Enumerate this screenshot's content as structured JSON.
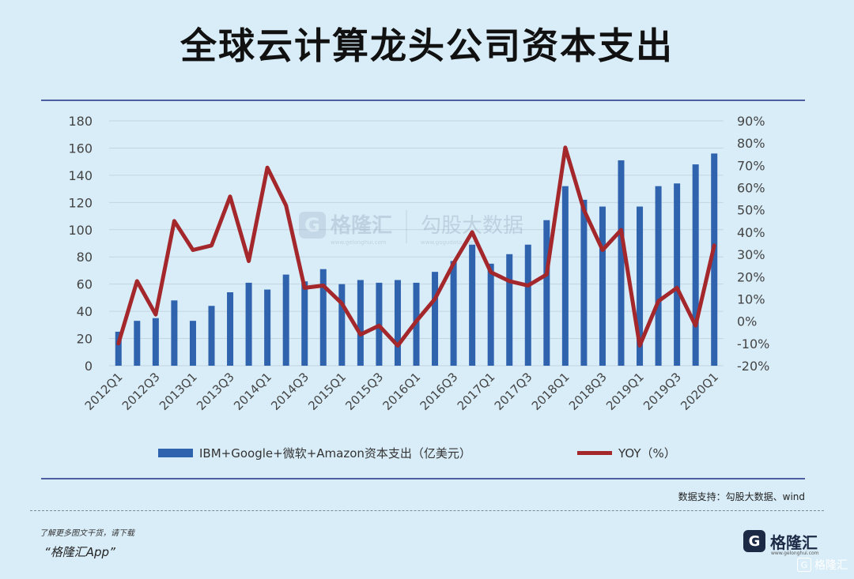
{
  "title": "全球云计算龙头公司资本支出",
  "source": "数据支持：勾股大数据、wind",
  "footer": {
    "small_text": "了解更多图文干货，请下载",
    "app_text": "“格隆汇App”",
    "brand_name": "格隆汇",
    "brand_logo": "G",
    "brand_sub": "www.gelonghui.com",
    "watermark": "格隆汇"
  },
  "chart_data": {
    "type": "bar",
    "title": "全球云计算龙头公司资本支出",
    "categories": [
      "2012Q1",
      "2012Q2",
      "2012Q3",
      "2012Q4",
      "2013Q1",
      "2013Q2",
      "2013Q3",
      "2013Q4",
      "2014Q1",
      "2014Q2",
      "2014Q3",
      "2014Q4",
      "2015Q1",
      "2015Q2",
      "2015Q3",
      "2015Q4",
      "2016Q1",
      "2016Q2",
      "2016Q3",
      "2016Q4",
      "2017Q1",
      "2017Q2",
      "2017Q3",
      "2017Q4",
      "2018Q1",
      "2018Q2",
      "2018Q3",
      "2018Q4",
      "2019Q1",
      "2019Q2",
      "2019Q3",
      "2019Q4",
      "2020Q1"
    ],
    "tick_labels": [
      "2012Q1",
      "2012Q3",
      "2013Q1",
      "2013Q3",
      "2014Q1",
      "2014Q3",
      "2015Q1",
      "2015Q3",
      "2016Q1",
      "2016Q3",
      "2017Q1",
      "2017Q3",
      "2018Q1",
      "2018Q3",
      "2019Q1",
      "2019Q3",
      "2020Q1"
    ],
    "series": [
      {
        "name": "IBM+Google+微软+Amazon资本支出（亿美元）",
        "type": "bar",
        "axis": "left",
        "values": [
          25,
          33,
          35,
          48,
          33,
          44,
          54,
          61,
          56,
          67,
          62,
          71,
          60,
          63,
          61,
          63,
          61,
          69,
          77,
          89,
          75,
          82,
          89,
          107,
          132,
          122,
          117,
          151,
          117,
          132,
          134,
          148,
          156
        ]
      },
      {
        "name": "YOY（%）",
        "type": "line",
        "axis": "right",
        "values": [
          -10,
          18,
          3,
          45,
          32,
          34,
          56,
          27,
          69,
          52,
          15,
          16,
          8,
          -6,
          -2,
          -11,
          0,
          10,
          26,
          40,
          22,
          18,
          16,
          21,
          78,
          50,
          32,
          41,
          -11,
          9,
          15,
          -2,
          34
        ]
      }
    ],
    "y_left": {
      "ticks": [
        "0",
        "20",
        "40",
        "60",
        "80",
        "100",
        "120",
        "140",
        "160",
        "180"
      ],
      "range": [
        0,
        180
      ]
    },
    "y_right": {
      "ticks": [
        "-20%",
        "-10%",
        "0%",
        "10%",
        "20%",
        "30%",
        "40%",
        "50%",
        "60%",
        "70%",
        "80%",
        "90%"
      ],
      "range": [
        -20,
        90
      ]
    },
    "colors": {
      "bar": "#2f63ad",
      "line": "#a3272b",
      "grid": "#c4d4e0",
      "frame": "#4d5fa0"
    },
    "watermark": {
      "brand": "格隆汇",
      "brand_sub": "www.gelonghui.com",
      "partner": "勾股大数据",
      "partner_sub": "www.gogudata.com"
    },
    "legend": "bottom",
    "grid": true
  }
}
